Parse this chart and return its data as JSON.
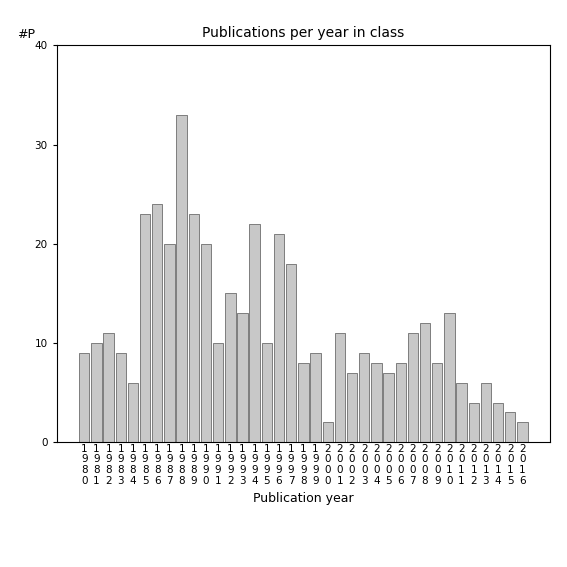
{
  "title": "Publications per year in class",
  "xlabel": "Publication year",
  "ylabel": "#P",
  "ylim": [
    0,
    40
  ],
  "yticks": [
    0,
    10,
    20,
    30,
    40
  ],
  "bar_color": "#c8c8c8",
  "bar_edgecolor": "#555555",
  "background_color": "#ffffff",
  "years": [
    "1980",
    "1981",
    "1982",
    "1983",
    "1984",
    "1985",
    "1986",
    "1987",
    "1988",
    "1989",
    "1990",
    "1991",
    "1992",
    "1993",
    "1994",
    "1995",
    "1996",
    "1997",
    "1998",
    "1999",
    "2000",
    "2001",
    "2002",
    "2003",
    "2004",
    "2005",
    "2006",
    "2007",
    "2008",
    "2009",
    "2010",
    "2011",
    "2012",
    "2013",
    "2014",
    "2015",
    "2016"
  ],
  "values": [
    9,
    10,
    11,
    9,
    6,
    23,
    24,
    20,
    33,
    23,
    20,
    10,
    15,
    13,
    22,
    10,
    21,
    18,
    8,
    9,
    2,
    11,
    7,
    9,
    8,
    7,
    8,
    11,
    12,
    8,
    13,
    6,
    4,
    6,
    4,
    3,
    2
  ],
  "title_fontsize": 10,
  "axis_fontsize": 9,
  "tick_fontsize": 7.5
}
